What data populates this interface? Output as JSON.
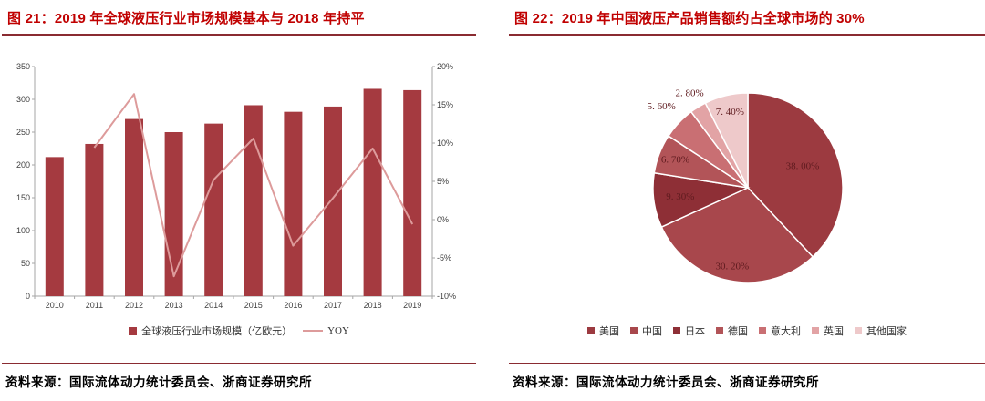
{
  "figures": [
    {
      "title": "图 21：2019 年全球液压行业市场规模基本与 2018 年持平",
      "source": "资料来源：国际流体动力统计委员会、浙商证券研究所"
    },
    {
      "title": "图 22：2019 年中国液压产品销售额约占全球市场的 30%",
      "source": "资料来源：国际流体动力统计委员会、浙商证券研究所"
    }
  ],
  "colors": {
    "title_red": "#c00000",
    "rule_maroon": "#8a2b31",
    "bar": "#a53a40",
    "yoy_line": "#dd9b9b",
    "pie_label": "#5f1b1f",
    "axis_line": "#a6a6a6",
    "axis_text": "#404040"
  },
  "chart_data": [
    {
      "type": "bar",
      "title": "图 21：2019 年全球液压行业市场规模基本与 2018 年持平",
      "categories": [
        "2010",
        "2011",
        "2012",
        "2013",
        "2014",
        "2015",
        "2016",
        "2017",
        "2018",
        "2019"
      ],
      "series": [
        {
          "name": "全球液压行业市场规模（亿欧元）",
          "type": "bar",
          "axis": "left",
          "values": [
            212,
            232,
            270,
            250,
            263,
            291,
            281,
            289,
            316,
            314
          ]
        },
        {
          "name": "YOY",
          "type": "line",
          "axis": "right",
          "values": [
            null,
            9.4,
            16.4,
            -7.4,
            5.2,
            10.6,
            -3.4,
            2.8,
            9.3,
            -0.6
          ]
        }
      ],
      "left_axis": {
        "min": 0,
        "max": 350,
        "step": 50,
        "ticks": [
          "0",
          "50",
          "100",
          "150",
          "200",
          "250",
          "300",
          "350"
        ]
      },
      "right_axis": {
        "min": -10,
        "max": 20,
        "step": 5,
        "ticks": [
          "-10%",
          "-5%",
          "0%",
          "5%",
          "10%",
          "15%",
          "20%"
        ]
      },
      "grid": false,
      "legend_position": "bottom"
    },
    {
      "type": "pie",
      "title": "图 22：2019 年中国液压产品销售额约占全球市场的 30%",
      "labels": [
        "美国",
        "中国",
        "日本",
        "德国",
        "意大利",
        "英国",
        "其他国家"
      ],
      "values": [
        38.0,
        30.2,
        9.3,
        6.7,
        5.6,
        2.8,
        7.4
      ],
      "data_labels": [
        "38. 00%",
        "30. 20%",
        "9. 30%",
        "6. 70%",
        "5. 60%",
        "2. 80%",
        "7. 40%"
      ],
      "colors": [
        "#9c3a40",
        "#a8474c",
        "#8e2f36",
        "#b25458",
        "#c96f73",
        "#e2a3a5",
        "#eec9ca"
      ],
      "start_angle_deg": 0,
      "direction": "clockwise",
      "label_r_mult": [
        0.62,
        0.85,
        0.72,
        0.82,
        1.25,
        1.17,
        0.82
      ],
      "legend_position": "bottom"
    }
  ]
}
